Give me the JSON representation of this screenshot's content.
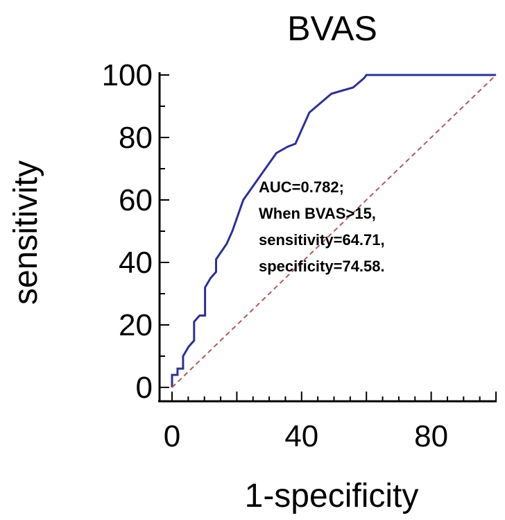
{
  "chart_data": {
    "type": "line",
    "title": "BVAS",
    "xlabel": "1-specificity",
    "ylabel": "sensitivity",
    "xlim": [
      0,
      100
    ],
    "ylim": [
      0,
      100
    ],
    "x_ticks": [
      0,
      40,
      80
    ],
    "y_ticks": [
      0,
      20,
      40,
      60,
      80,
      100
    ],
    "grid": false,
    "series": [
      {
        "color": "#2e3192",
        "x": [
          0,
          0,
          1.7,
          1.7,
          3.4,
          3.4,
          5.1,
          6.8,
          6.8,
          8.5,
          10.2,
          10.2,
          11.9,
          13.6,
          13.6,
          16.9,
          18.6,
          20.3,
          22.0,
          25.4,
          28.8,
          32.2,
          35.6,
          38.1,
          42.4,
          45.8,
          49.2,
          52.5,
          55.9,
          59.3,
          60.0,
          100
        ],
        "y": [
          0,
          4,
          4,
          6,
          6,
          10,
          13,
          15,
          21,
          23,
          23,
          32,
          35,
          37,
          41,
          46,
          50,
          55,
          60,
          65,
          70,
          75,
          77,
          78,
          88,
          91,
          94,
          95,
          96,
          99,
          100,
          100
        ]
      },
      {
        "color": "#b05a5a",
        "dash": true,
        "x": [
          0,
          100
        ],
        "y": [
          0,
          100
        ]
      }
    ],
    "annotation": [
      "AUC=0.782;",
      "When BVAS>15,",
      "sensitivity=64.71,",
      "specificity=74.58."
    ]
  }
}
